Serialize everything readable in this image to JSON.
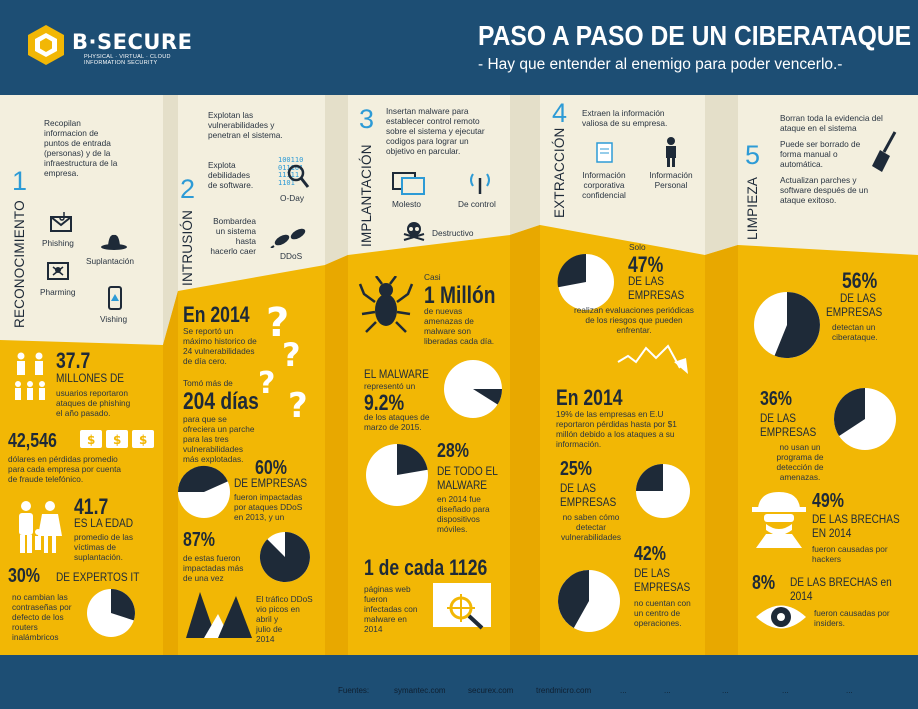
{
  "header": {
    "logo_text": "B·SECURE",
    "logo_sub_line1": "PHYSICAL · VIRTUAL · CLOUD",
    "logo_sub_line2": "INFORMATION SECURITY",
    "title": "PASO A PASO DE UN CIBERATAQUE",
    "subtitle": "- Hay que entender al enemigo para poder vencerlo.-"
  },
  "colors": {
    "navy": "#1d4e74",
    "cream": "#f3efde",
    "yellow": "#f2b705",
    "blue": "#2d9bd6",
    "dark": "#1e2a38"
  },
  "steps": [
    {
      "num": "1",
      "name": "RECONOCIMIENTO",
      "desc": [
        "Recopilan",
        "informacion de",
        "puntos de entrada",
        "(personas) y de la",
        "infraestructura de la",
        "empresa."
      ],
      "items": [
        "Phishing",
        "Suplantación",
        "Pharming",
        "Vishing"
      ]
    },
    {
      "num": "2",
      "name": "INTRUSIÓN",
      "desc": [
        "Explotan las",
        "vulnerabilidades y",
        "penetran el sistema."
      ],
      "item1": [
        "Explota",
        "debilidades",
        "de software."
      ],
      "item1_label": "O-Day",
      "item2": [
        "Bombardea",
        "un sistema",
        "hasta",
        "hacerlo caer"
      ],
      "item2_label": "DDoS",
      "code": [
        "100110",
        "011101",
        "11111",
        "1101"
      ]
    },
    {
      "num": "3",
      "name": "IMPLANTACIÓN",
      "desc": [
        "Insertan malware para",
        "establecer control remoto",
        "sobre el sistema y ejecutar",
        "codigos para lograr un",
        "objetivo en parcular."
      ],
      "items": [
        "Molesto",
        "De control",
        "Destructivo"
      ]
    },
    {
      "num": "4",
      "name": "EXTRACCIÓN",
      "desc": [
        "Extraen la información",
        "valiosa de su empresa."
      ],
      "items": [
        [
          "Información",
          "corporativa",
          "confidencial"
        ],
        [
          "Información",
          "Personal"
        ]
      ]
    },
    {
      "num": "5",
      "name": "LIMPIEZA",
      "desc": [
        [
          "Borran toda la evidencia del",
          "ataque en el sistema"
        ],
        [
          "Puede ser borrado de",
          "forma manual o",
          "automática."
        ],
        [
          "Actualizan parches y",
          "software  después de un",
          "ataque exitoso."
        ]
      ]
    }
  ],
  "stats_col1": {
    "s1_big": "37.7",
    "s1_mid": "MILLONES DE",
    "s1_text": [
      "usuarios reportaron",
      "ataques de phishing",
      "el año pasado."
    ],
    "s2_big": "42,546",
    "s2_text": [
      "dólares en pérdidas promedio",
      "para cada empresa por cuenta",
      "de fraude telefónico."
    ],
    "s3_big": "41.7",
    "s3_mid": "ES LA EDAD",
    "s3_text": [
      "promedio de las",
      "víctimas de",
      "suplantación."
    ],
    "s4_big": "30%",
    "s4_mid": "DE EXPERTOS IT",
    "s4_text": [
      "no cambian las",
      "contraseñas por",
      "defecto de los",
      "routers",
      "inalámbricos"
    ]
  },
  "stats_col2": {
    "s1_big": "En 2014",
    "s1_text": [
      "Se reportó un",
      "máximo historico de",
      "24 vulnerabilidades",
      "de día cero."
    ],
    "s2_pre": "Tomó más de",
    "s2_big": "204 días",
    "s2_text": [
      "para que se",
      "ofreciera un parche",
      "para las tres",
      "vulnerabilidades",
      "más explotadas."
    ],
    "s3_big": "60%",
    "s3_mid": "DE EMPRESAS",
    "s3_text": [
      "fueron impactadas",
      "por ataques DDoS",
      "en 2013, y un"
    ],
    "s4_big": "87%",
    "s4_text": [
      "de estas fueron",
      "impactadas más",
      "de una vez"
    ],
    "s5_text": [
      "El tráfico DDoS",
      "vio picos en",
      "abril y",
      "julio de",
      "2014"
    ]
  },
  "stats_col3": {
    "s1_pre": "Casi",
    "s1_big": "1 Millón",
    "s1_text": [
      "de nuevas",
      "amenazas de",
      "malware son",
      "liberadas cada día."
    ],
    "s2_mid": "EL MALWARE",
    "s2_pre": "representó un",
    "s2_big": "9.2%",
    "s2_text": [
      "de los ataques de",
      "marzo de 2015."
    ],
    "s3_big": "28%",
    "s3_mid1": "DE TODO EL",
    "s3_mid2": "MALWARE",
    "s3_text": [
      "en 2014 fue",
      "diseñado para",
      "dispositivos",
      "móviles."
    ],
    "s4_big": "1 de cada 1126",
    "s4_text": [
      "páginas web",
      "fueron",
      "infectadas con",
      "malware en",
      "2014"
    ]
  },
  "stats_col4": {
    "s1_pre": "Solo",
    "s1_big": "47%",
    "s1_mid1": "DE LAS",
    "s1_mid2": "EMPRESAS",
    "s1_text": [
      "realizan  evaluaciones  periódicas",
      "de los riesgos que pueden",
      "enfrentar."
    ],
    "s2_big": "En 2014",
    "s2_text": [
      "19% de las empresas en E.U",
      "reportaron pérdidas hasta por $1",
      "millón debido a los ataques a su",
      "información."
    ],
    "s3_big": "25%",
    "s3_mid1": "DE LAS",
    "s3_mid2": "EMPRESAS",
    "s3_text": [
      "no saben cómo",
      "detectar",
      "vulnerabilidades"
    ],
    "s4_big": "42%",
    "s4_mid1": "DE LAS",
    "s4_mid2": "EMPRESAS",
    "s4_text": [
      "no cuentan con",
      "un centro de",
      "operaciones."
    ]
  },
  "stats_col5": {
    "s1_big": "56%",
    "s1_mid1": "DE LAS",
    "s1_mid2": "EMPRESAS",
    "s1_text": [
      "detectan un",
      "ciberataque."
    ],
    "s2_big": "36%",
    "s2_mid1": "DE LAS",
    "s2_mid2": "EMPRESAS",
    "s2_text": [
      "no usan un",
      "programa de",
      "detección de",
      "amenazas."
    ],
    "s3_big": "49%",
    "s3_mid1": "DE LAS BRECHAS",
    "s3_mid2": "EN 2014",
    "s3_text": [
      "fueron causadas por",
      "hackers"
    ],
    "s4_big": "8%",
    "s4_mid1": "DE LAS BRECHAS en",
    "s4_mid2": "2014",
    "s4_text": [
      "fueron causadas por",
      "insiders."
    ]
  },
  "footer": {
    "label": "Fuentes:",
    "sources": [
      "symantec.com",
      "securex.com",
      "trendmicro.com",
      "...",
      "...",
      "...",
      "...",
      "..."
    ]
  }
}
